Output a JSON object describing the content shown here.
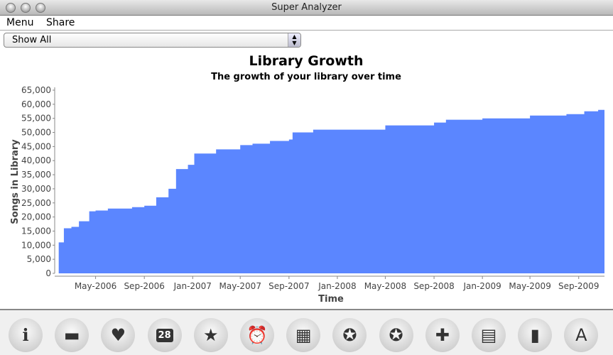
{
  "window": {
    "title": "Super Analyzer"
  },
  "menu": {
    "items": [
      "Menu",
      "Share"
    ]
  },
  "filter": {
    "selected": "Show All"
  },
  "toolbar": {
    "icons": [
      "info-icon",
      "folder-icon",
      "heart-icon",
      "calendar-icon",
      "star-icon",
      "alarm-clock-icon",
      "bar-stack-icon",
      "award-ribbon-icon",
      "award-ribbon-alt-icon",
      "plus-icon",
      "document-icon",
      "growth-chart-icon",
      "font-document-icon"
    ],
    "calendar_text": "28"
  },
  "chart_data": {
    "type": "area",
    "title": "Library Growth",
    "subtitle": "The growth of your library over time",
    "xlabel": "Time",
    "ylabel": "Songs in Library",
    "color": "#5b86ff",
    "ylim": [
      0,
      65000
    ],
    "xlim": [
      "2006-01-25",
      "2009-11-05"
    ],
    "yticks": [
      0,
      5000,
      10000,
      15000,
      20000,
      25000,
      30000,
      35000,
      40000,
      45000,
      50000,
      55000,
      60000,
      65000
    ],
    "ytick_labels": [
      "0",
      "5,000",
      "10,000",
      "15,000",
      "20,000",
      "25,000",
      "30,000",
      "35,000",
      "40,000",
      "45,000",
      "50,000",
      "55,000",
      "60,000",
      "65,000"
    ],
    "xticks": [
      "2006-05-01",
      "2006-09-01",
      "2007-01-01",
      "2007-05-01",
      "2007-09-01",
      "2008-01-01",
      "2008-05-01",
      "2008-09-01",
      "2009-01-01",
      "2009-05-01",
      "2009-09-01"
    ],
    "xtick_labels": [
      "May-2006",
      "Sep-2006",
      "Jan-2007",
      "May-2007",
      "Sep-2007",
      "Jan-2008",
      "May-2008",
      "Sep-2008",
      "Jan-2009",
      "May-2009",
      "Sep-2009"
    ],
    "x": [
      "2006-01-25",
      "2006-01-28",
      "2006-02-05",
      "2006-02-10",
      "2006-03-01",
      "2006-03-20",
      "2006-04-15",
      "2006-05-01",
      "2006-06-01",
      "2006-07-01",
      "2006-08-01",
      "2006-09-01",
      "2006-10-01",
      "2006-11-01",
      "2006-11-20",
      "2006-12-20",
      "2007-01-05",
      "2007-03-01",
      "2007-05-01",
      "2007-06-01",
      "2007-07-15",
      "2007-09-01",
      "2007-09-10",
      "2007-11-01",
      "2008-04-01",
      "2008-05-01",
      "2008-09-01",
      "2008-10-01",
      "2009-01-01",
      "2009-05-01",
      "2009-08-01",
      "2009-09-15",
      "2009-10-20",
      "2009-11-05"
    ],
    "y": [
      0,
      11000,
      11000,
      16000,
      16500,
      18500,
      22000,
      22300,
      23000,
      23000,
      23500,
      24000,
      27000,
      30000,
      37000,
      38500,
      42500,
      44000,
      45500,
      46000,
      47000,
      47500,
      50000,
      51000,
      51000,
      52500,
      53500,
      54500,
      55000,
      56000,
      56500,
      57500,
      58000,
      63000
    ]
  }
}
